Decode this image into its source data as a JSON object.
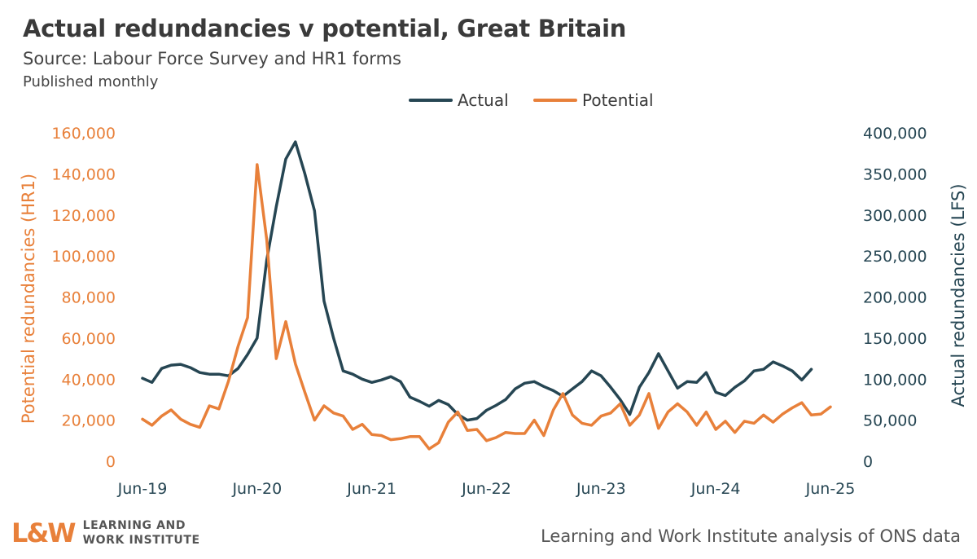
{
  "header": {
    "title": "Actual redundancies v potential, Great Britain",
    "subtitle": "Source: Labour Force Survey and HR1 forms",
    "published": "Published monthly"
  },
  "footer": {
    "logo_mark": "L&W",
    "logo_line1": "LEARNING AND",
    "logo_line2": "WORK INSTITUTE",
    "credit": "Learning and Work Institute analysis of ONS data"
  },
  "colors": {
    "actual": "#264653",
    "potential": "#e8803a",
    "tick_right": "#264653",
    "tick_left": "#e8803a",
    "x_tick": "#264653"
  },
  "chart_data": {
    "type": "line",
    "x": [
      "Jun-19",
      "Jul-19",
      "Aug-19",
      "Sep-19",
      "Oct-19",
      "Nov-19",
      "Dec-19",
      "Jan-20",
      "Feb-20",
      "Mar-20",
      "Apr-20",
      "May-20",
      "Jun-20",
      "Jul-20",
      "Aug-20",
      "Sep-20",
      "Oct-20",
      "Nov-20",
      "Dec-20",
      "Jan-21",
      "Feb-21",
      "Mar-21",
      "Apr-21",
      "May-21",
      "Jun-21",
      "Jul-21",
      "Aug-21",
      "Sep-21",
      "Oct-21",
      "Nov-21",
      "Dec-21",
      "Jan-22",
      "Feb-22",
      "Mar-22",
      "Apr-22",
      "May-22",
      "Jun-22",
      "Jul-22",
      "Aug-22",
      "Sep-22",
      "Oct-22",
      "Nov-22",
      "Dec-22",
      "Jan-23",
      "Feb-23",
      "Mar-23",
      "Apr-23",
      "May-23",
      "Jun-23",
      "Jul-23",
      "Aug-23",
      "Sep-23",
      "Oct-23",
      "Nov-23",
      "Dec-23",
      "Jan-24",
      "Feb-24",
      "Mar-24",
      "Apr-24",
      "May-24",
      "Jun-24",
      "Jul-24",
      "Aug-24",
      "Sep-24",
      "Oct-24",
      "Nov-24",
      "Dec-24",
      "Jan-25",
      "Feb-25",
      "Mar-25",
      "Apr-25",
      "May-25",
      "Jun-25"
    ],
    "x_ticks": [
      "Jun-19",
      "Jun-20",
      "Jun-21",
      "Jun-22",
      "Jun-23",
      "Jun-24",
      "Jun-25"
    ],
    "legend": [
      "Actual",
      "Potential"
    ],
    "legend_position": "top",
    "left_axis": {
      "label": "Potential redundancies (HR1)",
      "range": [
        0,
        160000
      ],
      "ticks": [
        "0",
        "20,000",
        "40,000",
        "60,000",
        "80,000",
        "100,000",
        "120,000",
        "140,000",
        "160,000"
      ]
    },
    "right_axis": {
      "label": "Actual redundancies (LFS)",
      "range": [
        0,
        400000
      ],
      "ticks": [
        "0",
        "50,000",
        "100,000",
        "150,000",
        "200,000",
        "250,000",
        "300,000",
        "350,000",
        "400,000"
      ]
    },
    "grid": false,
    "series": [
      {
        "name": "Actual",
        "axis": "right",
        "values": [
          101000,
          96000,
          113000,
          117000,
          118000,
          114000,
          108000,
          106000,
          106000,
          104000,
          113000,
          130000,
          150000,
          245000,
          310000,
          368000,
          389000,
          350000,
          305000,
          195000,
          150000,
          110000,
          106000,
          100000,
          96000,
          99000,
          103000,
          97000,
          78000,
          73000,
          67000,
          74000,
          69000,
          57000,
          50000,
          52000,
          62000,
          68000,
          75000,
          88000,
          95000,
          97000,
          91000,
          86000,
          79000,
          88000,
          97000,
          110000,
          104000,
          90000,
          75000,
          57000,
          90000,
          108000,
          131000,
          110000,
          89000,
          97000,
          96000,
          108000,
          84000,
          80000,
          90000,
          98000,
          110000,
          112000,
          121000,
          116000,
          110000,
          99000,
          112000,
          null,
          null
        ]
      },
      {
        "name": "Potential",
        "axis": "left",
        "values": [
          20500,
          17500,
          22000,
          25000,
          20500,
          18000,
          16500,
          27000,
          25500,
          39000,
          56000,
          70000,
          144500,
          108000,
          50000,
          68000,
          47500,
          33500,
          20000,
          27000,
          23500,
          22000,
          15500,
          18000,
          13000,
          12500,
          10500,
          11000,
          12000,
          12000,
          6000,
          9000,
          19000,
          24000,
          15000,
          15500,
          10000,
          11500,
          14000,
          13500,
          13500,
          20000,
          12500,
          25000,
          33000,
          22500,
          18500,
          17500,
          22000,
          23500,
          28000,
          17500,
          22500,
          33000,
          16000,
          24000,
          28000,
          24000,
          17500,
          24000,
          15500,
          19500,
          14000,
          19500,
          18500,
          22500,
          19000,
          23000,
          26000,
          28500,
          22500,
          23000,
          26500
        ]
      }
    ]
  }
}
